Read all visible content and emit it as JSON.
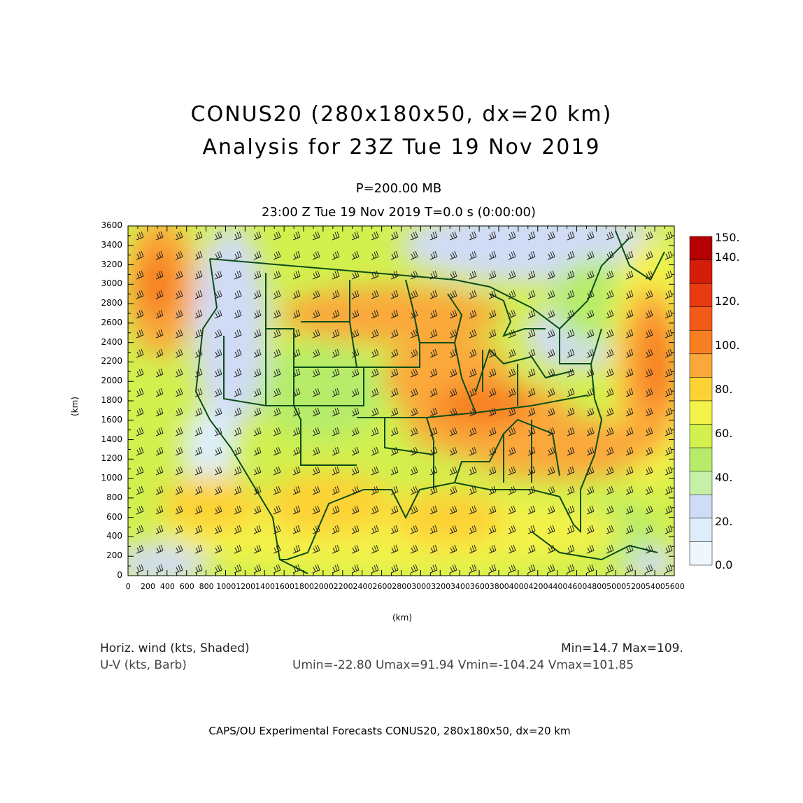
{
  "header": {
    "title_line1": "CONUS20 (280x180x50, dx=20 km)",
    "title_line2": "Analysis for 23Z Tue 19 Nov 2019",
    "level": "P=200.00 MB",
    "valid_time": "23:00 Z Tue 19 Nov 2019    T=0.0 s (0:00:00)"
  },
  "axes": {
    "y_ticks": [
      "0",
      "200",
      "400",
      "600",
      "800",
      "1000",
      "1200",
      "1400",
      "1600",
      "1800",
      "2000",
      "2200",
      "2400",
      "2600",
      "2800",
      "3000",
      "3200",
      "3400",
      "3600"
    ],
    "x_ticks": [
      "0",
      "200",
      "400",
      "600",
      "800",
      "1000",
      "1200",
      "1400",
      "1600",
      "1800",
      "2000",
      "2200",
      "2400",
      "2600",
      "2800",
      "3000",
      "3200",
      "3400",
      "3600",
      "3800",
      "4000",
      "4200",
      "4400",
      "4600",
      "4800",
      "5000",
      "5200",
      "5400",
      "5600"
    ],
    "x_unit": "(km)",
    "y_unit": "(km)"
  },
  "colorbar": {
    "labels": [
      "150.",
      "140.",
      "120.",
      "100.",
      "80.",
      "60.",
      "40.",
      "20.",
      "0.0"
    ],
    "colors": [
      "#b40000",
      "#d41e0a",
      "#ea3a10",
      "#f25a18",
      "#f77f22",
      "#fba83a",
      "#fdd235",
      "#f3f24a",
      "#d2f04e",
      "#b6ec6a",
      "#c6f0a8",
      "#d0dcf6",
      "#ddeefa",
      "#eef8fc"
    ]
  },
  "footer": {
    "field1": "Horiz. wind (kts, Shaded)",
    "field2": "U-V (kts, Barb)",
    "minmax": "Min=14.7 Max=109.",
    "uv_stats": "Umin=-22.80 Umax=91.94 Vmin=-104.24 Vmax=101.85",
    "credit": "CAPS/OU Experimental Forecasts  CONUS20, 280x180x50, dx=20 km"
  }
}
